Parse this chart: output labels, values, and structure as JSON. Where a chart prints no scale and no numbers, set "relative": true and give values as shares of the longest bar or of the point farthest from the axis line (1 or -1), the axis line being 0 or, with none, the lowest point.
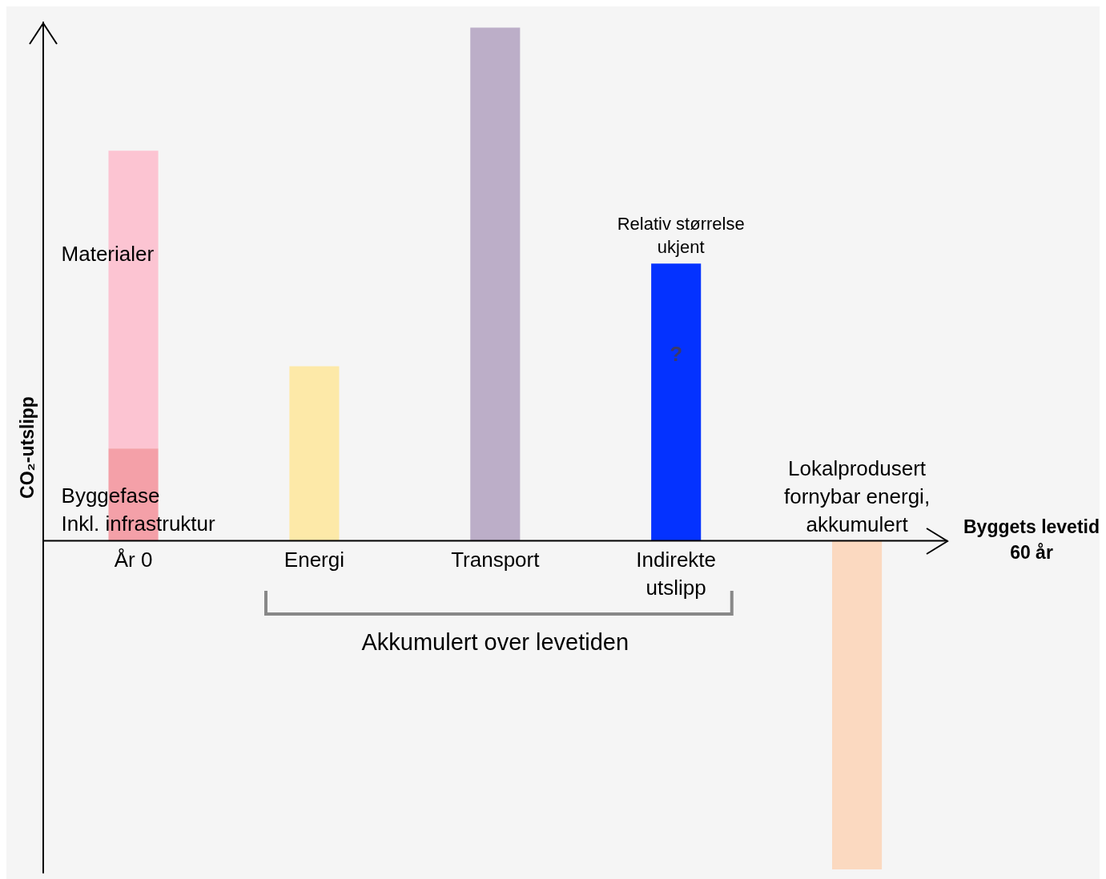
{
  "chart_data": {
    "type": "bar",
    "relative": true,
    "stacked": true,
    "ylabel": "CO₂-utslipp",
    "xlabel": "Byggets levetid\n60 år",
    "tick_labels": "x",
    "grid": false,
    "legend": false,
    "categories": [
      "År 0",
      "Energi",
      "Transport",
      "Indirekte\nutslipp",
      "Lokalprodusert\nfornybar energi,\nakkumulert"
    ],
    "series": [
      {
        "name": "Byggefase\nInkl. infrastruktur",
        "color": "#f4a0a8",
        "values": [
          0.18,
          null,
          null,
          null,
          null
        ]
      },
      {
        "name": "Materialer",
        "color": "#fcc4d2",
        "values": [
          0.58,
          null,
          null,
          null,
          null
        ]
      },
      {
        "colors": [
          "#fcc4d2",
          "#fde9a8",
          "#bcaec8",
          "#0432ff",
          "#fbd9c0"
        ],
        "values": [
          null,
          0.34,
          1,
          0.54,
          -0.64
        ]
      }
    ],
    "annotations": [
      "Relativ størrelse\nukjent",
      "?",
      "Akkumulert over levetiden"
    ]
  }
}
